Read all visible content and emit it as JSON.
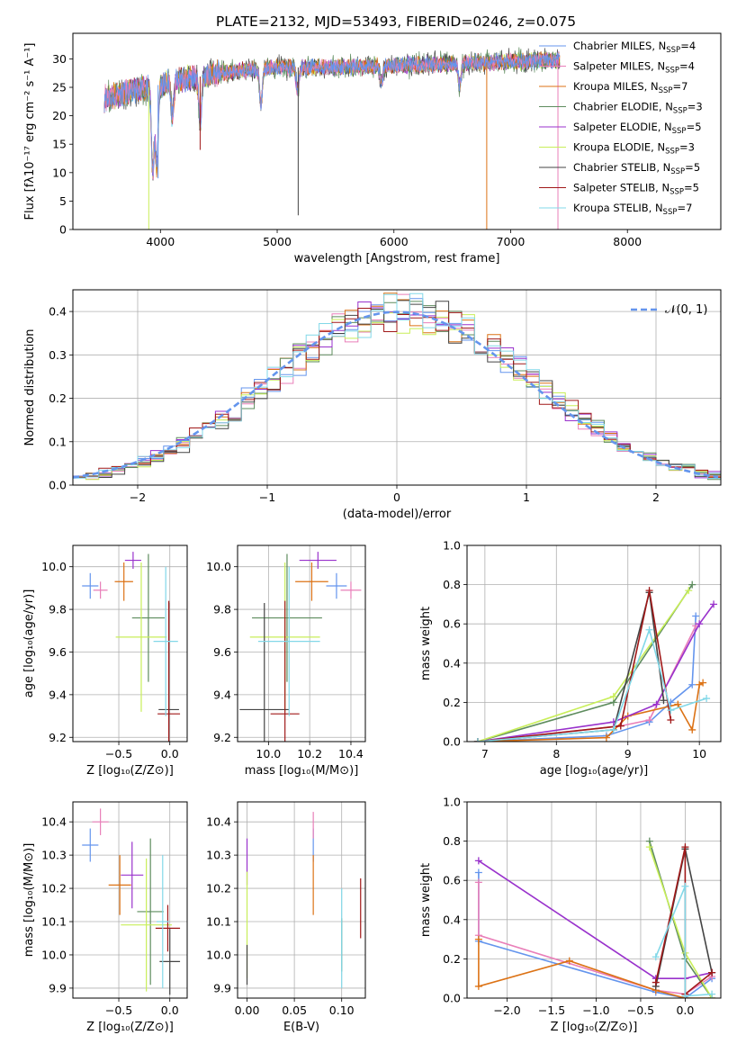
{
  "figure_title": "PLATE=2132, MJD=53493, FIBERID=0246, z=0.075",
  "series_styles": [
    {
      "name": "Chabrier MILES",
      "nssp": "4",
      "color": "#6495ed"
    },
    {
      "name": "Salpeter MILES",
      "nssp": "4",
      "color": "#e97fb9"
    },
    {
      "name": "Kroupa MILES",
      "nssp": "7",
      "color": "#dc7215"
    },
    {
      "name": "Chabrier ELODIE",
      "nssp": "3",
      "color": "#5e8c5e"
    },
    {
      "name": "Salpeter ELODIE",
      "nssp": "5",
      "color": "#9932cc"
    },
    {
      "name": "Kroupa ELODIE",
      "nssp": "3",
      "color": "#c8ee59"
    },
    {
      "name": "Chabrier STELIB",
      "nssp": "5",
      "color": "#444444"
    },
    {
      "name": "Salpeter STELIB",
      "nssp": "5",
      "color": "#a01818"
    },
    {
      "name": "Kroupa STELIB",
      "nssp": "7",
      "color": "#82d8e8"
    }
  ],
  "nssp_prefix": "N",
  "nssp_sub": "SSP",
  "chart_data": [
    {
      "id": "spectrum",
      "type": "line",
      "xlabel": "wavelength [Angstrom, rest frame]",
      "ylabel": "Flux [fλ10⁻¹⁷ erg cm⁻² s⁻¹ A⁻¹]",
      "xlim": [
        3250,
        8800
      ],
      "ylim": [
        0,
        34.5
      ],
      "xticks": [
        4000,
        5000,
        6000,
        7000,
        8000
      ],
      "yticks": [
        0,
        5,
        10,
        15,
        20,
        25,
        30
      ],
      "grid": false,
      "legend": "right",
      "data_range": [
        3520,
        7420
      ],
      "continuum": [
        [
          3520,
          23
        ],
        [
          3700,
          24
        ],
        [
          3900,
          25
        ],
        [
          4100,
          26
        ],
        [
          4500,
          27.5
        ],
        [
          5000,
          28.5
        ],
        [
          5500,
          28.5
        ],
        [
          6000,
          28.8
        ],
        [
          6500,
          29.2
        ],
        [
          7000,
          29.5
        ],
        [
          7400,
          29.8
        ]
      ],
      "absorption": [
        [
          3934,
          15
        ],
        [
          3969,
          14
        ],
        [
          4102,
          6
        ],
        [
          4340,
          8
        ],
        [
          4861,
          6
        ],
        [
          5175,
          4
        ],
        [
          5893,
          3
        ],
        [
          6563,
          4
        ]
      ],
      "spikes_down": [
        [
          3900,
          0
        ],
        [
          3980,
          9
        ],
        [
          4340,
          14
        ],
        [
          5180,
          2.5
        ],
        [
          6795,
          0
        ],
        [
          7405,
          0
        ]
      ]
    },
    {
      "id": "residuals",
      "type": "histogram",
      "xlabel": "(data-model)/error",
      "ylabel": "Normed distribution",
      "xlim": [
        -2.5,
        2.5
      ],
      "ylim": [
        0,
        0.45
      ],
      "xticks": [
        -2,
        -1,
        0,
        1,
        2
      ],
      "yticks": [
        0.0,
        0.1,
        0.2,
        0.3,
        0.4
      ],
      "grid": true,
      "legend": "top-right",
      "reference_curve": {
        "name": "𝒩(0, 1)",
        "mean": 0,
        "sigma": 1,
        "color": "#6495ed"
      },
      "bin_width": 0.1
    },
    {
      "id": "age_vs_Z",
      "type": "scatter",
      "xlabel": "Z [log₁₀(Z/Z⊙)]",
      "ylabel": "age  [log₁₀(age/yr)]",
      "xlim": [
        -0.95,
        0.17
      ],
      "ylim": [
        9.18,
        10.1
      ],
      "xticks": [
        -0.5,
        0.0
      ],
      "xticklabels": [
        "−0.5",
        "0.0"
      ],
      "yticks": [
        9.2,
        9.4,
        9.6,
        9.8,
        10.0
      ],
      "yticklabels": [
        "9.2",
        "9.4",
        "9.6",
        "9.8",
        "10.0"
      ],
      "grid": true,
      "points": [
        {
          "s": 0,
          "x": -0.78,
          "y": 9.91,
          "xe": 0.08,
          "ye": 0.06
        },
        {
          "s": 1,
          "x": -0.68,
          "y": 9.89,
          "xe": 0.07,
          "ye": 0.04
        },
        {
          "s": 2,
          "x": -0.45,
          "y": 9.93,
          "xe": 0.09,
          "ye": 0.09
        },
        {
          "s": 3,
          "x": -0.21,
          "y": 9.76,
          "xe": 0.16,
          "ye": 0.3
        },
        {
          "s": 4,
          "x": -0.36,
          "y": 10.03,
          "xe": 0.08,
          "ye": 0.04
        },
        {
          "s": 5,
          "x": -0.28,
          "y": 9.67,
          "xe": 0.25,
          "ye": 0.35
        },
        {
          "s": 6,
          "x": -0.01,
          "y": 9.33,
          "xe": 0.1,
          "ye": 0.5
        },
        {
          "s": 7,
          "x": -0.01,
          "y": 9.31,
          "xe": 0.11,
          "ye": 0.53
        },
        {
          "s": 8,
          "x": -0.04,
          "y": 9.65,
          "xe": 0.12,
          "ye": 0.35
        }
      ]
    },
    {
      "id": "age_vs_mass",
      "type": "scatter",
      "xlabel": "mass [log₁₀(M/M⊙)]",
      "ylabel": "",
      "xlim": [
        9.85,
        10.47
      ],
      "ylim": [
        9.18,
        10.1
      ],
      "xticks": [
        10.0,
        10.2,
        10.4
      ],
      "xticklabels": [
        "10.0",
        "10.2",
        "10.4"
      ],
      "yticks": [
        9.2,
        9.4,
        9.6,
        9.8,
        10.0
      ],
      "yticklabels": [
        "9.2",
        "9.4",
        "9.6",
        "9.8",
        "10.0"
      ],
      "grid": true,
      "points": [
        {
          "s": 0,
          "x": 10.33,
          "y": 9.91,
          "xe": 0.05,
          "ye": 0.06
        },
        {
          "s": 1,
          "x": 10.4,
          "y": 9.89,
          "xe": 0.05,
          "ye": 0.04
        },
        {
          "s": 2,
          "x": 10.21,
          "y": 9.93,
          "xe": 0.08,
          "ye": 0.09
        },
        {
          "s": 3,
          "x": 10.09,
          "y": 9.76,
          "xe": 0.17,
          "ye": 0.3
        },
        {
          "s": 4,
          "x": 10.24,
          "y": 10.03,
          "xe": 0.09,
          "ye": 0.04
        },
        {
          "s": 5,
          "x": 10.08,
          "y": 9.67,
          "xe": 0.17,
          "ye": 0.35
        },
        {
          "s": 6,
          "x": 9.98,
          "y": 9.33,
          "xe": 0.12,
          "ye": 0.5
        },
        {
          "s": 7,
          "x": 10.08,
          "y": 9.31,
          "xe": 0.07,
          "ye": 0.53
        },
        {
          "s": 8,
          "x": 10.1,
          "y": 9.65,
          "xe": 0.15,
          "ye": 0.35
        }
      ]
    },
    {
      "id": "mass_weight_vs_age",
      "type": "line",
      "xlabel": "age  [log₁₀(age/yr)]",
      "ylabel": "mass weight",
      "xlim": [
        6.75,
        10.3
      ],
      "ylim": [
        0,
        1.0
      ],
      "xticks": [
        7,
        8,
        9,
        10
      ],
      "xticklabels": [
        "7",
        "8",
        "9",
        "10"
      ],
      "yticks": [
        0.0,
        0.2,
        0.4,
        0.6,
        0.8,
        1.0
      ],
      "yticklabels": [
        "0.0",
        "0.2",
        "0.4",
        "0.6",
        "0.8",
        "1.0"
      ],
      "grid": true,
      "lines": [
        {
          "s": 0,
          "pts": [
            [
              6.9,
              0.0
            ],
            [
              8.7,
              0.03
            ],
            [
              9.3,
              0.1
            ],
            [
              9.6,
              0.2
            ],
            [
              9.9,
              0.29
            ],
            [
              9.95,
              0.64
            ]
          ]
        },
        {
          "s": 1,
          "pts": [
            [
              6.9,
              0.0
            ],
            [
              8.9,
              0.08
            ],
            [
              9.3,
              0.11
            ],
            [
              9.95,
              0.59
            ]
          ]
        },
        {
          "s": 2,
          "pts": [
            [
              6.9,
              0.0
            ],
            [
              8.7,
              0.02
            ],
            [
              9.0,
              0.13
            ],
            [
              9.7,
              0.19
            ],
            [
              9.9,
              0.06
            ],
            [
              10.0,
              0.29
            ],
            [
              10.05,
              0.3
            ]
          ]
        },
        {
          "s": 3,
          "pts": [
            [
              6.9,
              0.0
            ],
            [
              8.8,
              0.2
            ],
            [
              9.9,
              0.8
            ]
          ]
        },
        {
          "s": 4,
          "pts": [
            [
              6.9,
              0.0
            ],
            [
              8.8,
              0.1
            ],
            [
              9.4,
              0.19
            ],
            [
              10.0,
              0.6
            ],
            [
              10.2,
              0.7
            ]
          ]
        },
        {
          "s": 5,
          "pts": [
            [
              6.9,
              0.0
            ],
            [
              8.8,
              0.23
            ],
            [
              9.85,
              0.77
            ]
          ]
        },
        {
          "s": 6,
          "pts": [
            [
              6.9,
              0.0
            ],
            [
              8.8,
              0.06
            ],
            [
              9.3,
              0.76
            ],
            [
              9.5,
              0.21
            ]
          ]
        },
        {
          "s": 7,
          "pts": [
            [
              6.9,
              0.0
            ],
            [
              8.9,
              0.08
            ],
            [
              9.3,
              0.77
            ],
            [
              9.6,
              0.11
            ]
          ]
        },
        {
          "s": 8,
          "pts": [
            [
              6.9,
              0.0
            ],
            [
              8.8,
              0.06
            ],
            [
              9.3,
              0.57
            ],
            [
              9.6,
              0.16
            ],
            [
              10.1,
              0.22
            ]
          ]
        }
      ]
    },
    {
      "id": "mass_vs_Z",
      "type": "scatter",
      "xlabel": "Z [log₁₀(Z/Z⊙)]",
      "ylabel": "mass [log₁₀(M/M⊙)]",
      "xlim": [
        -0.95,
        0.17
      ],
      "ylim": [
        9.87,
        10.46
      ],
      "xticks": [
        -0.5,
        0.0
      ],
      "xticklabels": [
        "−0.5",
        "0.0"
      ],
      "yticks": [
        9.9,
        10.0,
        10.1,
        10.2,
        10.3,
        10.4
      ],
      "yticklabels": [
        "9.9",
        "10.0",
        "10.1",
        "10.2",
        "10.3",
        "10.4"
      ],
      "grid": true,
      "points": [
        {
          "s": 0,
          "x": -0.78,
          "y": 10.33,
          "xe": 0.08,
          "ye": 0.05
        },
        {
          "s": 1,
          "x": -0.68,
          "y": 10.4,
          "xe": 0.08,
          "ye": 0.04
        },
        {
          "s": 2,
          "x": -0.49,
          "y": 10.21,
          "xe": 0.11,
          "ye": 0.09
        },
        {
          "s": 3,
          "x": -0.19,
          "y": 10.13,
          "xe": 0.13,
          "ye": 0.22
        },
        {
          "s": 4,
          "x": -0.37,
          "y": 10.24,
          "xe": 0.11,
          "ye": 0.1
        },
        {
          "s": 5,
          "x": -0.23,
          "y": 10.09,
          "xe": 0.25,
          "ye": 0.2
        },
        {
          "s": 6,
          "x": 0.0,
          "y": 9.98,
          "xe": 0.1,
          "ye": 0.1
        },
        {
          "s": 7,
          "x": -0.02,
          "y": 10.08,
          "xe": 0.12,
          "ye": 0.07
        },
        {
          "s": 8,
          "x": -0.07,
          "y": 10.1,
          "xe": 0.06,
          "ye": 0.2
        }
      ]
    },
    {
      "id": "mass_vs_EBV",
      "type": "scatter",
      "xlabel": "E(B-V)",
      "ylabel": "",
      "xlim": [
        -0.01,
        0.125
      ],
      "ylim": [
        9.87,
        10.46
      ],
      "xticks": [
        0.0,
        0.05,
        0.1
      ],
      "xticklabels": [
        "0.00",
        "0.05",
        "0.10"
      ],
      "yticks": [
        9.9,
        10.0,
        10.1,
        10.2,
        10.3,
        10.4
      ],
      "yticklabels": [
        "9.9",
        "10.0",
        "10.1",
        "10.2",
        "10.3",
        "10.4"
      ],
      "grid": true,
      "points": [
        {
          "s": 0,
          "x": 0.07,
          "y": 10.33,
          "xe": 0.0,
          "ye": 0.05
        },
        {
          "s": 1,
          "x": 0.07,
          "y": 10.39,
          "xe": 0.0,
          "ye": 0.04
        },
        {
          "s": 2,
          "x": 0.07,
          "y": 10.21,
          "xe": 0.0,
          "ye": 0.09
        },
        {
          "s": 3,
          "x": 0.1,
          "y": 10.03,
          "xe": 0.0,
          "ye": 0.08
        },
        {
          "s": 4,
          "x": 0.0,
          "y": 10.28,
          "xe": 0.0,
          "ye": 0.07
        },
        {
          "s": 5,
          "x": 0.0,
          "y": 10.09,
          "xe": 0.0,
          "ye": 0.16
        },
        {
          "s": 6,
          "x": 0.0,
          "y": 9.97,
          "xe": 0.0,
          "ye": 0.06
        },
        {
          "s": 7,
          "x": 0.12,
          "y": 10.14,
          "xe": 0.0,
          "ye": 0.09
        },
        {
          "s": 8,
          "x": 0.1,
          "y": 10.05,
          "xe": 0.0,
          "ye": 0.15
        }
      ]
    },
    {
      "id": "mass_weight_vs_Z",
      "type": "line",
      "xlabel": "Z [log₁₀(Z/Z⊙)]",
      "ylabel": "mass weight",
      "xlim": [
        -2.45,
        0.4
      ],
      "ylim": [
        0,
        1.0
      ],
      "xticks": [
        -2.0,
        -1.5,
        -1.0,
        -0.5,
        0.0
      ],
      "xticklabels": [
        "−2.0",
        "−1.5",
        "−1.0",
        "−0.5",
        "0.0"
      ],
      "yticks": [
        0.0,
        0.2,
        0.4,
        0.6,
        0.8,
        1.0
      ],
      "yticklabels": [
        "0.0",
        "0.2",
        "0.4",
        "0.6",
        "0.8",
        "1.0"
      ],
      "grid": true,
      "lines": [
        {
          "s": 0,
          "pts": [
            [
              -2.32,
              0.64
            ],
            [
              -2.32,
              0.29
            ],
            [
              -0.33,
              0.03
            ],
            [
              0.0,
              0.0
            ],
            [
              0.3,
              0.1
            ]
          ]
        },
        {
          "s": 1,
          "pts": [
            [
              -2.32,
              0.59
            ],
            [
              -2.32,
              0.32
            ],
            [
              -0.33,
              0.04
            ],
            [
              0.0,
              0.02
            ],
            [
              0.3,
              0.11
            ]
          ]
        },
        {
          "s": 2,
          "pts": [
            [
              -2.32,
              0.3
            ],
            [
              -2.32,
              0.06
            ],
            [
              -1.3,
              0.19
            ],
            [
              -0.33,
              0.04
            ],
            [
              0.0,
              0.0
            ],
            [
              0.3,
              0.0
            ]
          ]
        },
        {
          "s": 3,
          "pts": [
            [
              -0.4,
              0.8
            ],
            [
              0.0,
              0.2
            ],
            [
              0.3,
              0.0
            ]
          ]
        },
        {
          "s": 4,
          "pts": [
            [
              -2.32,
              0.7
            ],
            [
              -0.33,
              0.1
            ],
            [
              0.0,
              0.1
            ],
            [
              0.3,
              0.13
            ]
          ]
        },
        {
          "s": 5,
          "pts": [
            [
              -0.4,
              0.77
            ],
            [
              0.0,
              0.23
            ],
            [
              0.3,
              0.0
            ]
          ]
        },
        {
          "s": 6,
          "pts": [
            [
              -0.33,
              0.06
            ],
            [
              0.0,
              0.76
            ],
            [
              0.3,
              0.13
            ]
          ]
        },
        {
          "s": 7,
          "pts": [
            [
              -0.33,
              0.08
            ],
            [
              0.0,
              0.77
            ],
            [
              0.0,
              0.02
            ],
            [
              0.3,
              0.13
            ]
          ]
        },
        {
          "s": 8,
          "pts": [
            [
              -0.33,
              0.21
            ],
            [
              0.0,
              0.57
            ],
            [
              0.0,
              0.01
            ],
            [
              0.3,
              0.02
            ]
          ]
        }
      ]
    }
  ]
}
